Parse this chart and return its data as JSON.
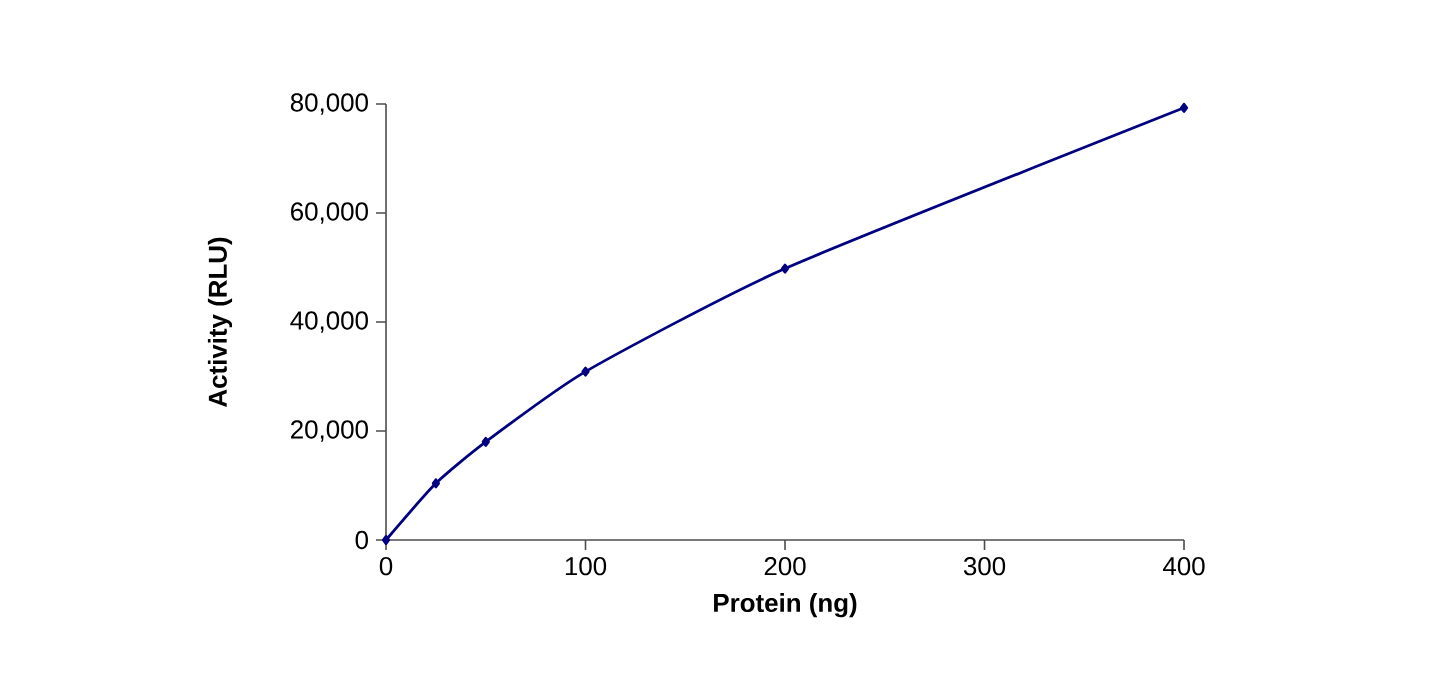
{
  "chart_data": {
    "type": "line",
    "xlabel": "Protein (ng)",
    "ylabel": "Activity  (RLU)",
    "x": [
      0,
      25,
      50,
      100,
      200,
      400
    ],
    "series": [
      {
        "color": "#000080",
        "values": [
          0,
          10400,
          18000,
          30900,
          49800,
          79300
        ]
      }
    ],
    "xlim": [
      0,
      400
    ],
    "xticks": [
      0,
      100,
      200,
      300,
      400
    ],
    "ylim": [
      0,
      80000
    ],
    "yticks": [
      {
        "value": 0,
        "label": "0"
      },
      {
        "value": 20000,
        "label": "20,000"
      },
      {
        "value": 40000,
        "label": "40,000"
      },
      {
        "value": 60000,
        "label": "60,000"
      },
      {
        "value": 80000,
        "label": "80,000"
      }
    ],
    "marker": "diamond"
  }
}
